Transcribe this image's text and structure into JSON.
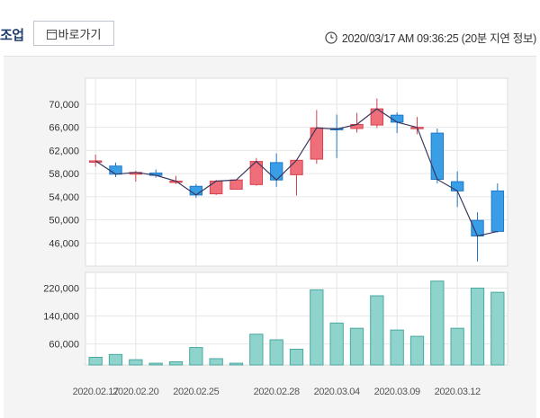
{
  "header": {
    "title": "조업",
    "shortcut_label": "바로가기",
    "timestamp": "2020/03/17 AM 09:36:25 (20분 지연 정보)"
  },
  "colors": {
    "up": "#ee6f79",
    "up_border": "#d9414e",
    "down": "#3a9ee6",
    "down_border": "#1f78c8",
    "line": "#37385e",
    "volume": "#8fd4cc",
    "volume_border": "#4ba89f",
    "header_text": "#1f3d6d"
  },
  "chart_data": {
    "type": "candlestick",
    "price": {
      "yticks": [
        "70,000",
        "66,000",
        "62,000",
        "58,000",
        "54,000",
        "50,000",
        "46,000"
      ],
      "ylim": [
        42000,
        74500
      ],
      "ohlc": [
        {
          "o": 60200,
          "h": 61300,
          "l": 59200,
          "c": 60200
        },
        {
          "o": 59300,
          "h": 59900,
          "l": 57400,
          "c": 57900
        },
        {
          "o": 57900,
          "h": 58500,
          "l": 56600,
          "c": 58200
        },
        {
          "o": 58100,
          "h": 58700,
          "l": 57300,
          "c": 57700
        },
        {
          "o": 56700,
          "h": 57600,
          "l": 56200,
          "c": 56700
        },
        {
          "o": 55800,
          "h": 56200,
          "l": 53800,
          "c": 54300
        },
        {
          "o": 54500,
          "h": 56900,
          "l": 54300,
          "c": 56700
        },
        {
          "o": 55300,
          "h": 57000,
          "l": 55300,
          "c": 56900
        },
        {
          "o": 56100,
          "h": 60700,
          "l": 55900,
          "c": 60100
        },
        {
          "o": 59900,
          "h": 61500,
          "l": 55700,
          "c": 56900
        },
        {
          "o": 57800,
          "h": 60400,
          "l": 54200,
          "c": 60300
        },
        {
          "o": 60500,
          "h": 69000,
          "l": 59700,
          "c": 65900
        },
        {
          "o": 65800,
          "h": 68200,
          "l": 60700,
          "c": 65700
        },
        {
          "o": 65800,
          "h": 68500,
          "l": 65100,
          "c": 66500
        },
        {
          "o": 66400,
          "h": 71000,
          "l": 65900,
          "c": 69200
        },
        {
          "o": 68100,
          "h": 68600,
          "l": 65000,
          "c": 66900
        },
        {
          "o": 66000,
          "h": 67800,
          "l": 64800,
          "c": 66000
        },
        {
          "o": 65000,
          "h": 65800,
          "l": 56300,
          "c": 57000
        },
        {
          "o": 56600,
          "h": 58400,
          "l": 52200,
          "c": 55000
        },
        {
          "o": 49900,
          "h": 51300,
          "l": 42800,
          "c": 47200
        },
        {
          "o": 55000,
          "h": 56300,
          "l": 47800,
          "c": 48000
        }
      ]
    },
    "volume": {
      "yticks": [
        "220,000",
        "140,000",
        "60,000"
      ],
      "ylim": [
        0,
        265000
      ],
      "values": [
        22000,
        30000,
        15000,
        5000,
        9000,
        50000,
        18000,
        5000,
        88000,
        72000,
        45000,
        215000,
        120000,
        105000,
        198000,
        100000,
        82000,
        240000,
        105000,
        220000,
        208000
      ]
    },
    "x_labels": [
      "2020.02.17",
      "2020.02.20",
      "2020.02.25",
      "2020.02.28",
      "2020.03.04",
      "2020.03.09",
      "2020.03.12"
    ],
    "x_label_days": [
      0,
      2,
      5,
      9,
      12,
      15,
      18
    ]
  }
}
